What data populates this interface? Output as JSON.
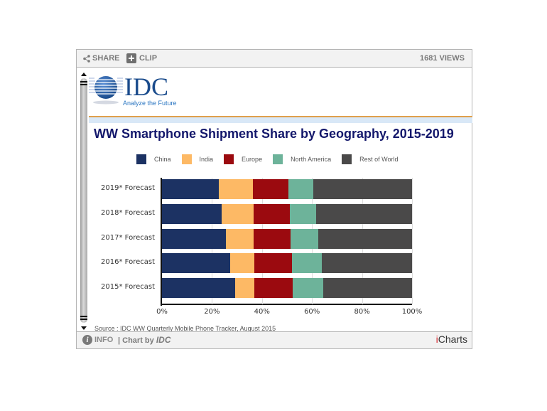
{
  "topbar": {
    "share_label": "SHARE",
    "clip_label": "CLIP",
    "views": "1681 VIEWS"
  },
  "logo": {
    "name": "IDC",
    "tagline": "Analyze the Future"
  },
  "footer": {
    "source": "Source : IDC WW Quarterly Mobile Phone Tracker, August 2015",
    "info_label": "INFO",
    "chart_by_prefix": "| Chart by ",
    "chart_by_name": "IDC",
    "brand_i": "i",
    "brand_rest": "Charts"
  },
  "colors": {
    "China": "#1c3263",
    "India": "#fdb965",
    "Europe": "#9b0a0f",
    "North America": "#6db39a",
    "Rest of World": "#4a4949"
  },
  "chart_data": {
    "type": "bar",
    "orientation": "horizontal",
    "stacked": "percent",
    "title": "WW Smartphone Shipment Share by Geography, 2015-2019",
    "xlabel": "",
    "ylabel": "",
    "xlim": [
      0,
      100
    ],
    "x_ticks": [
      "0%",
      "20%",
      "40%",
      "60%",
      "80%",
      "100%"
    ],
    "grid": true,
    "legend_position": "top",
    "legend": [
      "China",
      "India",
      "Europe",
      "North America",
      "Rest of World"
    ],
    "categories": [
      "2019* Forecast",
      "2018* Forecast",
      "2017* Forecast",
      "2016* Forecast",
      "2015* Forecast"
    ],
    "series": [
      {
        "name": "China",
        "values": [
          22.8,
          23.9,
          25.5,
          27.4,
          29.3
        ]
      },
      {
        "name": "India",
        "values": [
          13.7,
          12.7,
          11.1,
          9.6,
          7.7
        ]
      },
      {
        "name": "Europe",
        "values": [
          14.1,
          14.4,
          14.9,
          15.0,
          15.2
        ]
      },
      {
        "name": "North America",
        "values": [
          9.9,
          10.6,
          11.1,
          12.0,
          12.4
        ]
      },
      {
        "name": "Rest of World",
        "values": [
          39.5,
          38.4,
          37.4,
          36.0,
          35.4
        ]
      }
    ],
    "source": "Source : IDC WW Quarterly Mobile Phone Tracker, August 2015"
  }
}
